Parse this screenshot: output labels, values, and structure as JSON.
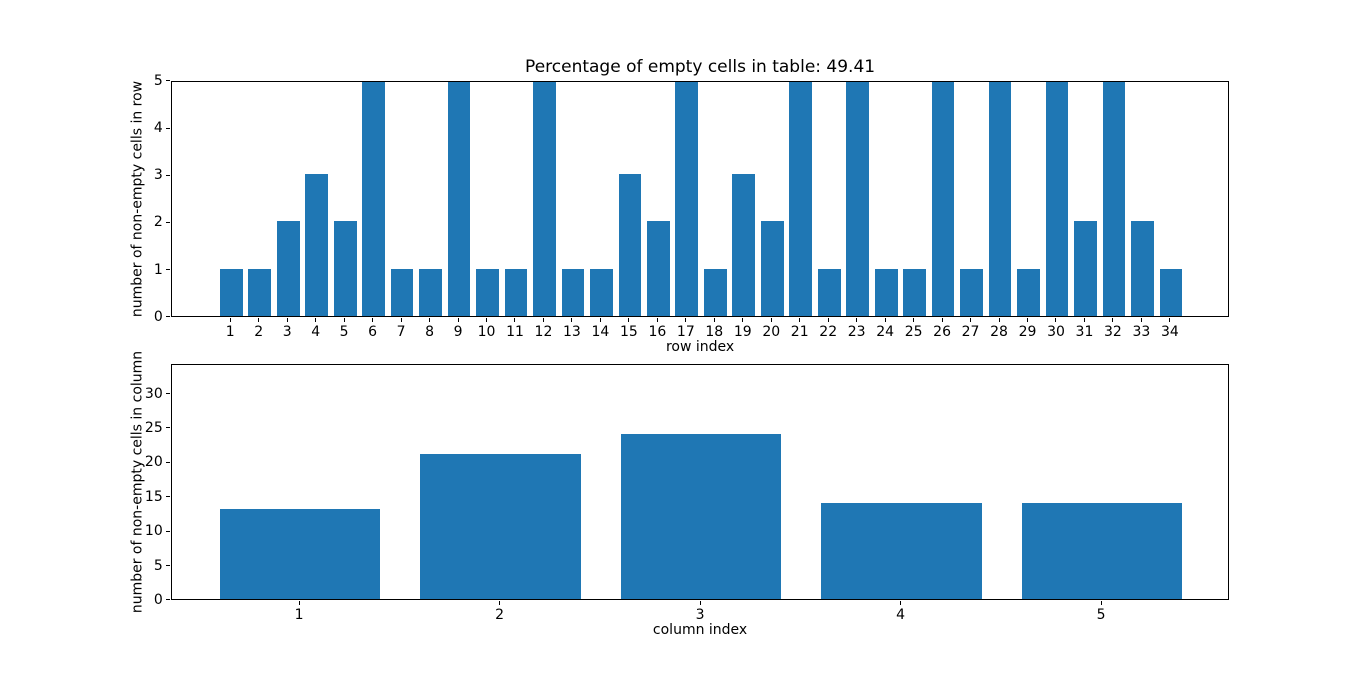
{
  "figure": {
    "kind": "matplotlib-figure",
    "background": "#ffffff",
    "accent_color": "#1f77b4"
  },
  "chart_data": [
    {
      "type": "bar",
      "title": "Percentage of empty cells in table: 49.41",
      "xlabel": "row index",
      "ylabel": "number of non-empty cells in row",
      "categories": [
        1,
        2,
        3,
        4,
        5,
        6,
        7,
        8,
        9,
        10,
        11,
        12,
        13,
        14,
        15,
        16,
        17,
        18,
        19,
        20,
        21,
        22,
        23,
        24,
        25,
        26,
        27,
        28,
        29,
        30,
        31,
        32,
        33,
        34
      ],
      "values": [
        1,
        1,
        2,
        3,
        2,
        5,
        1,
        1,
        5,
        1,
        1,
        5,
        1,
        1,
        3,
        2,
        5,
        1,
        3,
        2,
        5,
        1,
        5,
        1,
        1,
        5,
        1,
        5,
        1,
        5,
        2,
        5,
        2,
        1
      ],
      "bar_color": "#1f77b4",
      "bar_width": 0.8,
      "xlim": [
        -1.09,
        36.09
      ],
      "ylim": [
        0,
        5
      ],
      "yticks": [
        0,
        1,
        2,
        3,
        4,
        5
      ],
      "grid": false,
      "legend": null
    },
    {
      "type": "bar",
      "title": "",
      "xlabel": "column index",
      "ylabel": "number of non-empty cells in column",
      "categories": [
        1,
        2,
        3,
        4,
        5
      ],
      "values": [
        13,
        21,
        24,
        14,
        14
      ],
      "bar_color": "#1f77b4",
      "bar_width": 0.8,
      "xlim": [
        0.36,
        5.64
      ],
      "ylim": [
        0,
        34.3
      ],
      "yticks": [
        0,
        5,
        10,
        15,
        20,
        25,
        30
      ],
      "grid": false,
      "legend": null
    }
  ]
}
